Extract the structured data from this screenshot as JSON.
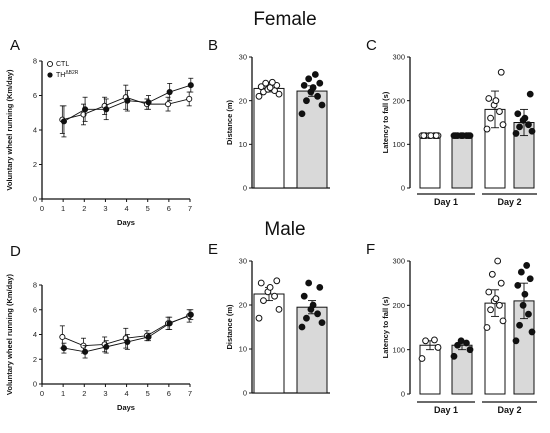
{
  "figure": {
    "section_titles": [
      "Female",
      "Male"
    ],
    "legend": [
      {
        "label": "CTL",
        "marker": "open-circle"
      },
      {
        "label": "TH",
        "superscript": "ΔB2R",
        "marker": "filled-circle"
      }
    ],
    "colors": {
      "ctl_fill": "#ffffff",
      "th_bar_fill": "#d9d9d9",
      "ink": "#111111"
    }
  },
  "chart_data": [
    {
      "panel": "A",
      "type": "line",
      "xlabel": "Days",
      "ylabel": "Voluntary wheel running (Km/day)",
      "xlim": [
        0,
        7
      ],
      "ylim": [
        0,
        8
      ],
      "xticks": [
        0,
        1,
        2,
        3,
        4,
        5,
        6,
        7
      ],
      "yticks": [
        0,
        2,
        4,
        6,
        8
      ],
      "x": [
        1,
        2,
        3,
        4,
        5,
        6,
        7
      ],
      "series": [
        {
          "name": "CTL",
          "marker": "open",
          "values": [
            4.6,
            4.9,
            5.4,
            5.9,
            5.5,
            5.5,
            5.8
          ],
          "err": [
            0.8,
            0.6,
            0.5,
            0.7,
            0.3,
            0.4,
            0.4
          ]
        },
        {
          "name": "TH ΔB2R",
          "marker": "filled",
          "values": [
            4.5,
            5.2,
            5.2,
            5.7,
            5.6,
            6.2,
            6.6
          ],
          "err": [
            0.9,
            0.7,
            0.6,
            0.6,
            0.4,
            0.5,
            0.4
          ]
        }
      ]
    },
    {
      "panel": "B",
      "type": "bar",
      "ylabel": "Distance (m)",
      "ylim": [
        0,
        30
      ],
      "yticks": [
        0,
        10,
        20,
        30
      ],
      "bars": [
        {
          "name": "CTL",
          "value": 22.8,
          "err": 0.8,
          "points": [
            21,
            21.5,
            22,
            22.3,
            22.6,
            23,
            23.2,
            23.5,
            24,
            24.2
          ]
        },
        {
          "name": "TH ΔB2R",
          "value": 22.2,
          "err": 1.2,
          "points": [
            17,
            19,
            20,
            21,
            22,
            23,
            23.5,
            24,
            25,
            26
          ]
        }
      ]
    },
    {
      "panel": "C",
      "type": "bar",
      "ylabel": "Latency to fall (s)",
      "ylim": [
        0,
        300
      ],
      "yticks": [
        0,
        100,
        200,
        300
      ],
      "groups": [
        "Day 1",
        "Day 2"
      ],
      "bars": [
        {
          "name": "CTL",
          "group": "Day 1",
          "value": 120,
          "err": 0,
          "points": [
            120,
            120,
            120,
            120,
            120,
            120,
            120,
            120
          ]
        },
        {
          "name": "TH ΔB2R",
          "group": "Day 1",
          "value": 120,
          "err": 0,
          "points": [
            120,
            120,
            120,
            120,
            120,
            120,
            120,
            120
          ]
        },
        {
          "name": "CTL",
          "group": "Day 2",
          "value": 180,
          "err": 42,
          "points": [
            135,
            145,
            160,
            175,
            190,
            200,
            205,
            265
          ]
        },
        {
          "name": "TH ΔB2R",
          "group": "Day 2",
          "value": 150,
          "err": 30,
          "points": [
            125,
            130,
            140,
            145,
            155,
            160,
            170,
            215
          ]
        }
      ]
    },
    {
      "panel": "D",
      "type": "line",
      "xlabel": "Days",
      "ylabel": "Voluntary wheel running (Km/day)",
      "xlim": [
        0,
        7
      ],
      "ylim": [
        0,
        8
      ],
      "xticks": [
        0,
        1,
        2,
        3,
        4,
        5,
        6,
        7
      ],
      "yticks": [
        0,
        2,
        4,
        6,
        8
      ],
      "x": [
        1,
        2,
        3,
        4,
        5,
        6,
        7
      ],
      "series": [
        {
          "name": "CTL",
          "marker": "open",
          "values": [
            3.8,
            3.1,
            3.2,
            3.7,
            3.9,
            4.9,
            5.5
          ],
          "err": [
            0.9,
            0.6,
            0.6,
            0.8,
            0.4,
            0.5,
            0.5
          ]
        },
        {
          "name": "TH ΔB2R",
          "marker": "filled",
          "values": [
            2.9,
            2.6,
            3.0,
            3.4,
            3.8,
            4.9,
            5.6
          ],
          "err": [
            0.4,
            0.5,
            0.5,
            0.6,
            0.3,
            0.5,
            0.4
          ]
        }
      ]
    },
    {
      "panel": "E",
      "type": "bar",
      "ylabel": "Distance (m)",
      "ylim": [
        0,
        30
      ],
      "yticks": [
        0,
        10,
        20,
        30
      ],
      "bars": [
        {
          "name": "CTL",
          "value": 22.5,
          "err": 1.5,
          "points": [
            17,
            19,
            21,
            22,
            23,
            24,
            25,
            25.5
          ]
        },
        {
          "name": "TH ΔB2R",
          "value": 19.5,
          "err": 1.5,
          "points": [
            15,
            16,
            17,
            18,
            19,
            20,
            22,
            24,
            25
          ]
        }
      ]
    },
    {
      "panel": "F",
      "type": "bar",
      "ylabel": "Latency to fall (s)",
      "ylim": [
        0,
        300
      ],
      "yticks": [
        0,
        100,
        200,
        300
      ],
      "groups": [
        "Day 1",
        "Day 2"
      ],
      "bars": [
        {
          "name": "CTL",
          "group": "Day 1",
          "value": 110,
          "err": 10,
          "points": [
            80,
            105,
            120,
            122
          ]
        },
        {
          "name": "TH ΔB2R",
          "group": "Day 1",
          "value": 110,
          "err": 10,
          "points": [
            85,
            100,
            110,
            115,
            120
          ]
        },
        {
          "name": "CTL",
          "group": "Day 2",
          "value": 205,
          "err": 30,
          "points": [
            150,
            165,
            190,
            200,
            210,
            215,
            230,
            250,
            270,
            300
          ]
        },
        {
          "name": "TH ΔB2R",
          "group": "Day 2",
          "value": 210,
          "err": 40,
          "points": [
            120,
            140,
            155,
            180,
            200,
            225,
            245,
            260,
            275,
            290
          ]
        }
      ]
    }
  ]
}
